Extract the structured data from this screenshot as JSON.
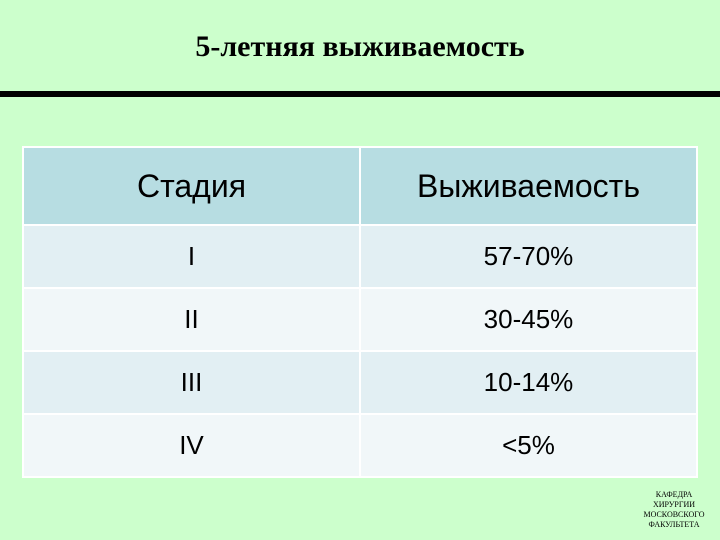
{
  "slide": {
    "title": "5-летняя выживаемость"
  },
  "table": {
    "headers": [
      "Стадия",
      "Выживаемость"
    ],
    "rows": [
      [
        "I",
        "57-70%"
      ],
      [
        "II",
        "30-45%"
      ],
      [
        "III",
        "10-14%"
      ],
      [
        "IV",
        "<5%"
      ]
    ]
  },
  "footer": {
    "lines": [
      "КАФЕДРА",
      "ХИРУРГИИ",
      "МОСКОВСКОГО",
      "ФАКУЛЬТЕТА"
    ]
  },
  "colors": {
    "background": "#ccffcc",
    "header_fill": "#b7dde2",
    "row_fill_odd": "#e2eff3",
    "row_fill_even": "#f1f7f9"
  }
}
